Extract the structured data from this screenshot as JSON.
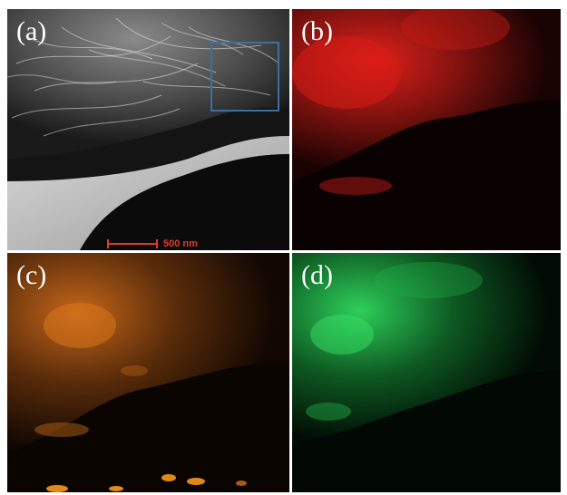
{
  "figure": {
    "panels": [
      {
        "id": "a",
        "label": "(a)",
        "kind": "grayscale-microscopy"
      },
      {
        "id": "b",
        "label": "(b)",
        "kind": "elemental-map",
        "color": "#e0201a"
      },
      {
        "id": "c",
        "label": "(c)",
        "kind": "elemental-map",
        "color": "#e0781a"
      },
      {
        "id": "d",
        "label": "(d)",
        "kind": "elemental-map",
        "color": "#2ecf5a"
      }
    ],
    "scalebar": {
      "text": "500 nm",
      "color": "#e03a2a"
    },
    "roi_box": {
      "color": "#3f6f9e"
    }
  }
}
